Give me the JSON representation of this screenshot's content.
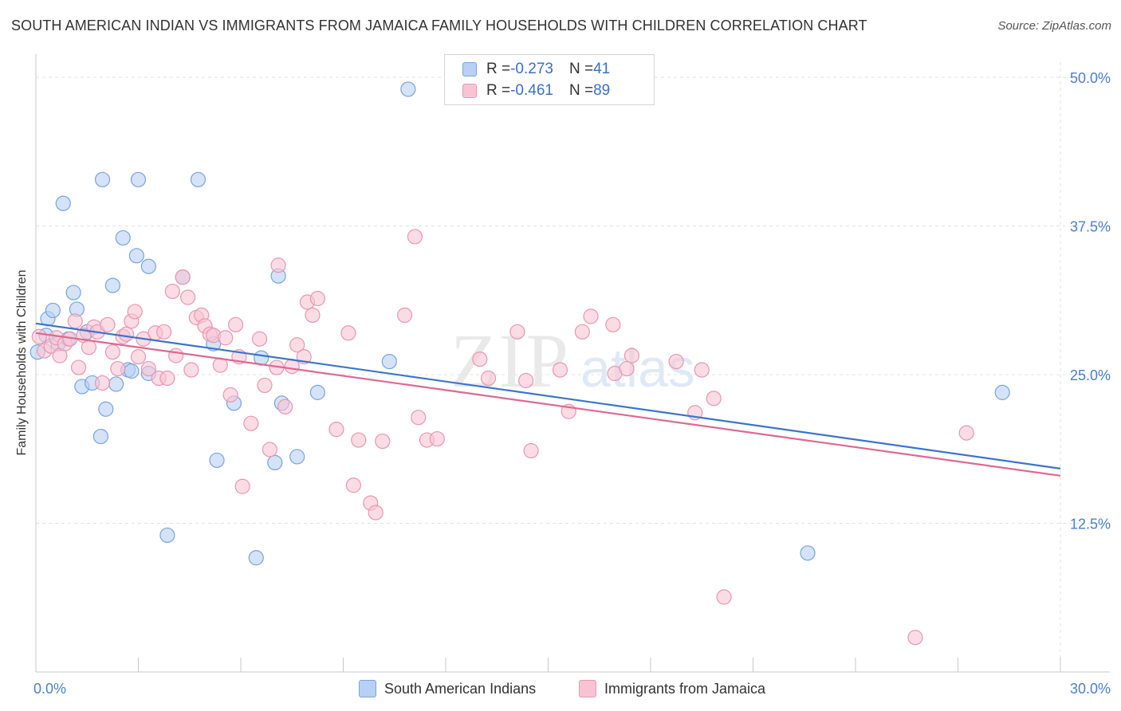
{
  "header": {
    "title": "SOUTH AMERICAN INDIAN VS IMMIGRANTS FROM JAMAICA FAMILY HOUSEHOLDS WITH CHILDREN CORRELATION CHART",
    "source": "Source: ZipAtlas.com"
  },
  "watermark": {
    "part1": "ZIP",
    "part2": "atlas"
  },
  "stats": [
    {
      "r_label": "R = ",
      "r_value": "-0.273",
      "n_label": "N = ",
      "n_value": "41"
    },
    {
      "r_label": "R = ",
      "r_value": "-0.461",
      "n_label": "N = ",
      "n_value": "89"
    }
  ],
  "colors": {
    "blue_fill": "#b8d0f3",
    "blue_stroke": "#7aa3dd",
    "blue_line": "#3a74d0",
    "pink_fill": "#f8c4d4",
    "pink_stroke": "#e996b1",
    "pink_line": "#e0688f",
    "grid": "#e2e2e2",
    "axis": "#c8c8c8",
    "tick_text": "#4a7fcf"
  },
  "chart_data": {
    "type": "scatter",
    "xlabel": "",
    "ylabel": "Family Households with Children",
    "xlim": [
      0,
      30
    ],
    "ylim": [
      0,
      52
    ],
    "x_tick_labels": [
      "0.0%",
      "30.0%"
    ],
    "y_ticks": [
      12.5,
      25.0,
      37.5,
      50.0
    ],
    "y_tick_labels": [
      "12.5%",
      "25.0%",
      "37.5%",
      "50.0%"
    ],
    "grid": true,
    "legend_position": "bottom",
    "series": [
      {
        "name": "South American Indians",
        "color": "#b8d0f3",
        "trend": {
          "x": [
            0,
            30
          ],
          "y": [
            29.3,
            17.1
          ]
        },
        "points": [
          [
            0.05,
            26.9
          ],
          [
            0.3,
            28.3
          ],
          [
            0.35,
            29.7
          ],
          [
            0.5,
            30.4
          ],
          [
            0.65,
            27.6
          ],
          [
            0.8,
            39.4
          ],
          [
            0.95,
            28.0
          ],
          [
            1.1,
            31.9
          ],
          [
            1.2,
            30.5
          ],
          [
            1.35,
            24.0
          ],
          [
            1.5,
            28.6
          ],
          [
            1.65,
            24.3
          ],
          [
            1.9,
            19.8
          ],
          [
            1.95,
            41.4
          ],
          [
            2.05,
            22.1
          ],
          [
            2.25,
            32.5
          ],
          [
            2.35,
            24.2
          ],
          [
            2.55,
            36.5
          ],
          [
            2.7,
            25.4
          ],
          [
            2.8,
            25.3
          ],
          [
            2.95,
            35.0
          ],
          [
            3.0,
            41.4
          ],
          [
            3.3,
            25.1
          ],
          [
            3.3,
            34.1
          ],
          [
            3.85,
            11.5
          ],
          [
            4.3,
            33.2
          ],
          [
            4.75,
            41.4
          ],
          [
            5.2,
            27.6
          ],
          [
            5.3,
            17.8
          ],
          [
            5.8,
            22.6
          ],
          [
            6.6,
            26.4
          ],
          [
            6.45,
            9.6
          ],
          [
            7.0,
            17.6
          ],
          [
            7.1,
            33.3
          ],
          [
            7.2,
            22.6
          ],
          [
            7.65,
            18.1
          ],
          [
            8.25,
            23.5
          ],
          [
            10.35,
            26.1
          ],
          [
            10.9,
            49.0
          ],
          [
            22.6,
            10.0
          ],
          [
            28.3,
            23.5
          ]
        ]
      },
      {
        "name": "Immigrants from Jamaica",
        "color": "#f8c4d4",
        "trend": {
          "x": [
            0,
            30
          ],
          "y": [
            28.5,
            16.5
          ]
        },
        "points": [
          [
            0.1,
            28.2
          ],
          [
            0.25,
            27.0
          ],
          [
            0.45,
            27.4
          ],
          [
            0.6,
            28.1
          ],
          [
            0.7,
            26.6
          ],
          [
            0.85,
            27.6
          ],
          [
            1.0,
            28.0
          ],
          [
            1.15,
            29.5
          ],
          [
            1.25,
            25.6
          ],
          [
            1.4,
            28.3
          ],
          [
            1.55,
            27.3
          ],
          [
            1.7,
            29.0
          ],
          [
            1.8,
            28.6
          ],
          [
            1.95,
            24.3
          ],
          [
            2.1,
            29.2
          ],
          [
            2.25,
            26.9
          ],
          [
            2.4,
            25.5
          ],
          [
            2.55,
            28.2
          ],
          [
            2.65,
            28.4
          ],
          [
            2.8,
            29.5
          ],
          [
            2.9,
            30.3
          ],
          [
            3.0,
            26.5
          ],
          [
            3.15,
            28.0
          ],
          [
            3.3,
            25.5
          ],
          [
            3.5,
            28.5
          ],
          [
            3.6,
            24.7
          ],
          [
            3.75,
            28.6
          ],
          [
            3.85,
            24.7
          ],
          [
            4.0,
            32.0
          ],
          [
            4.1,
            26.6
          ],
          [
            4.3,
            33.2
          ],
          [
            4.45,
            31.5
          ],
          [
            4.55,
            25.4
          ],
          [
            4.7,
            29.8
          ],
          [
            4.85,
            30.0
          ],
          [
            4.95,
            29.1
          ],
          [
            5.1,
            28.4
          ],
          [
            5.2,
            28.3
          ],
          [
            5.4,
            25.8
          ],
          [
            5.55,
            28.1
          ],
          [
            5.7,
            23.3
          ],
          [
            5.85,
            29.2
          ],
          [
            5.95,
            26.5
          ],
          [
            6.05,
            15.6
          ],
          [
            6.3,
            20.9
          ],
          [
            6.55,
            28.0
          ],
          [
            6.7,
            24.1
          ],
          [
            6.85,
            18.7
          ],
          [
            7.05,
            25.6
          ],
          [
            7.1,
            34.2
          ],
          [
            7.3,
            22.3
          ],
          [
            7.5,
            25.7
          ],
          [
            7.65,
            27.5
          ],
          [
            7.85,
            26.5
          ],
          [
            7.95,
            31.1
          ],
          [
            8.1,
            30.0
          ],
          [
            8.25,
            31.4
          ],
          [
            8.8,
            20.4
          ],
          [
            9.15,
            28.5
          ],
          [
            9.3,
            15.7
          ],
          [
            9.45,
            19.5
          ],
          [
            9.8,
            14.2
          ],
          [
            9.95,
            13.4
          ],
          [
            10.15,
            19.4
          ],
          [
            10.8,
            30.0
          ],
          [
            11.1,
            36.6
          ],
          [
            11.2,
            21.4
          ],
          [
            11.45,
            19.5
          ],
          [
            11.75,
            19.6
          ],
          [
            13.0,
            26.3
          ],
          [
            13.25,
            24.7
          ],
          [
            14.1,
            28.6
          ],
          [
            14.35,
            24.5
          ],
          [
            14.5,
            18.6
          ],
          [
            15.35,
            25.4
          ],
          [
            15.6,
            21.9
          ],
          [
            16.0,
            28.6
          ],
          [
            16.25,
            29.9
          ],
          [
            16.9,
            29.2
          ],
          [
            16.95,
            25.1
          ],
          [
            17.45,
            26.6
          ],
          [
            17.3,
            25.5
          ],
          [
            18.75,
            26.1
          ],
          [
            19.3,
            21.8
          ],
          [
            19.5,
            25.4
          ],
          [
            19.85,
            23.0
          ],
          [
            20.15,
            6.3
          ],
          [
            25.75,
            2.9
          ],
          [
            27.25,
            20.1
          ]
        ]
      }
    ]
  }
}
